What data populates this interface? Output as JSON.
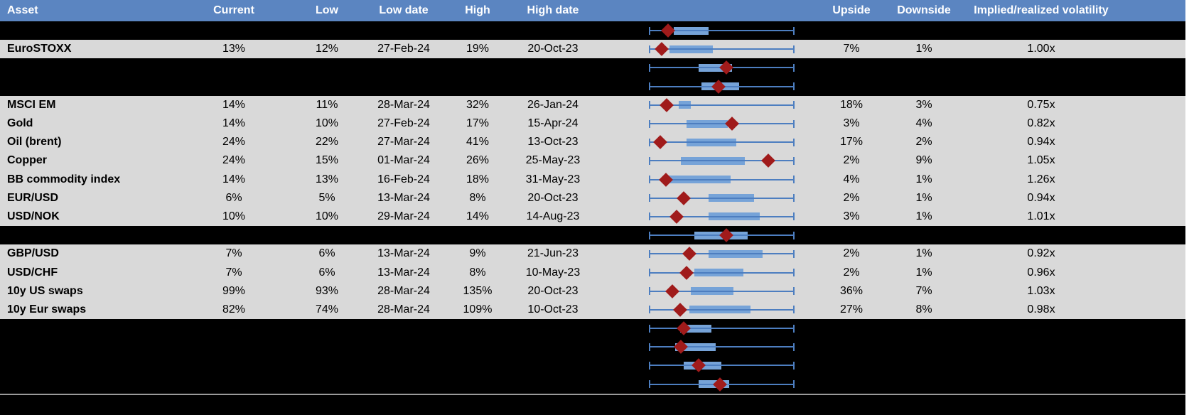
{
  "colors": {
    "header_bg": "#5B85C1",
    "row_bg": "#D9D9D9",
    "hidden_row_bg": "#000000",
    "box_fill": "#76A3D8",
    "whisker": "#4D7EC0",
    "diamond": "#A01B1B",
    "divider": "#9A9A9A"
  },
  "chart_data": {
    "type": "table",
    "note_box_geometry": "box and diamond values are normalized 0-1 positions of each row's range boxplot (whisker spans full low-high range)",
    "columns": {
      "asset": "Asset",
      "current": "Current",
      "low": "Low",
      "low_date": "Low date",
      "high": "High",
      "high_date": "High date",
      "range": "",
      "upside": "Upside",
      "downside": "Downside",
      "impl_vol": "Implied/realized volatility"
    },
    "rows": [
      {
        "hidden": true,
        "asset": "",
        "current": "",
        "low": "",
        "low_date": "",
        "high": "",
        "high_date": "",
        "upside": "",
        "downside": "",
        "impl_vol": "",
        "box": [
          0.17,
          0.41
        ],
        "diamond": 0.13
      },
      {
        "hidden": false,
        "asset": "EuroSTOXX",
        "current": "13%",
        "low": "12%",
        "low_date": "27-Feb-24",
        "high": "19%",
        "high_date": "20-Oct-23",
        "upside": "7%",
        "downside": "1%",
        "impl_vol": "1.00x",
        "box": [
          0.14,
          0.44
        ],
        "diamond": 0.09
      },
      {
        "hidden": true,
        "asset": "",
        "current": "",
        "low": "",
        "low_date": "",
        "high": "",
        "high_date": "",
        "upside": "",
        "downside": "",
        "impl_vol": "",
        "box": [
          0.34,
          0.57
        ],
        "diamond": 0.53
      },
      {
        "hidden": true,
        "asset": "",
        "current": "",
        "low": "",
        "low_date": "",
        "high": "",
        "high_date": "",
        "upside": "",
        "downside": "",
        "impl_vol": "",
        "box": [
          0.36,
          0.62
        ],
        "diamond": 0.48
      },
      {
        "hidden": false,
        "asset": "MSCI EM",
        "current": "14%",
        "low": "11%",
        "low_date": "28-Mar-24",
        "high": "32%",
        "high_date": "26-Jan-24",
        "upside": "18%",
        "downside": "3%",
        "impl_vol": "0.75x",
        "box": [
          0.205,
          0.29
        ],
        "diamond": 0.12
      },
      {
        "hidden": false,
        "asset": "Gold",
        "current": "14%",
        "low": "10%",
        "low_date": "27-Feb-24",
        "high": "17%",
        "high_date": "15-Apr-24",
        "upside": "3%",
        "downside": "4%",
        "impl_vol": "0.82x",
        "box": [
          0.26,
          0.54
        ],
        "diamond": 0.57
      },
      {
        "hidden": false,
        "asset": "Oil (brent)",
        "current": "24%",
        "low": "22%",
        "low_date": "27-Mar-24",
        "high": "41%",
        "high_date": "13-Oct-23",
        "upside": "17%",
        "downside": "2%",
        "impl_vol": "0.94x",
        "box": [
          0.26,
          0.6
        ],
        "diamond": 0.08
      },
      {
        "hidden": false,
        "asset": "Copper",
        "current": "24%",
        "low": "15%",
        "low_date": "01-Mar-24",
        "high": "26%",
        "high_date": "25-May-23",
        "upside": "2%",
        "downside": "9%",
        "impl_vol": "1.05x",
        "box": [
          0.22,
          0.66
        ],
        "diamond": 0.82
      },
      {
        "hidden": false,
        "asset": "BB commodity index",
        "current": "14%",
        "low": "13%",
        "low_date": "16-Feb-24",
        "high": "18%",
        "high_date": "31-May-23",
        "upside": "4%",
        "downside": "1%",
        "impl_vol": "1.26x",
        "box": [
          0.13,
          0.56
        ],
        "diamond": 0.117
      },
      {
        "hidden": false,
        "asset": "EUR/USD",
        "current": "6%",
        "low": "5%",
        "low_date": "13-Mar-24",
        "high": "8%",
        "high_date": "20-Oct-23",
        "upside": "2%",
        "downside": "1%",
        "impl_vol": "0.94x",
        "box": [
          0.41,
          0.72
        ],
        "diamond": 0.24
      },
      {
        "hidden": false,
        "asset": "USD/NOK",
        "current": "10%",
        "low": "10%",
        "low_date": "29-Mar-24",
        "high": "14%",
        "high_date": "14-Aug-23",
        "upside": "3%",
        "downside": "1%",
        "impl_vol": "1.01x",
        "box": [
          0.41,
          0.76
        ],
        "diamond": 0.19
      },
      {
        "hidden": true,
        "asset": "",
        "current": "",
        "low": "",
        "low_date": "",
        "high": "",
        "high_date": "",
        "upside": "",
        "downside": "",
        "impl_vol": "",
        "box": [
          0.31,
          0.68
        ],
        "diamond": 0.53
      },
      {
        "hidden": false,
        "asset": "GBP/USD",
        "current": "7%",
        "low": "6%",
        "low_date": "13-Mar-24",
        "high": "9%",
        "high_date": "21-Jun-23",
        "upside": "2%",
        "downside": "1%",
        "impl_vol": "0.92x",
        "box": [
          0.41,
          0.78
        ],
        "diamond": 0.28
      },
      {
        "hidden": false,
        "asset": "USD/CHF",
        "current": "7%",
        "low": "6%",
        "low_date": "13-Mar-24",
        "high": "8%",
        "high_date": "10-May-23",
        "upside": "2%",
        "downside": "1%",
        "impl_vol": "0.96x",
        "box": [
          0.31,
          0.65
        ],
        "diamond": 0.26
      },
      {
        "hidden": false,
        "asset": "10y US swaps",
        "current": "99%",
        "low": "93%",
        "low_date": "28-Mar-24",
        "high": "135%",
        "high_date": "20-Oct-23",
        "upside": "36%",
        "downside": "7%",
        "impl_vol": "1.03x",
        "box": [
          0.29,
          0.58
        ],
        "diamond": 0.16
      },
      {
        "hidden": false,
        "asset": "10y Eur swaps",
        "current": "82%",
        "low": "74%",
        "low_date": "28-Mar-24",
        "high": "109%",
        "high_date": "10-Oct-23",
        "upside": "27%",
        "downside": "8%",
        "impl_vol": "0.98x",
        "box": [
          0.28,
          0.7
        ],
        "diamond": 0.215
      },
      {
        "hidden": true,
        "asset": "",
        "current": "",
        "low": "",
        "low_date": "",
        "high": "",
        "high_date": "",
        "upside": "",
        "downside": "",
        "impl_vol": "",
        "box": [
          0.215,
          0.43
        ],
        "diamond": 0.24
      },
      {
        "hidden": true,
        "asset": "",
        "current": "",
        "low": "",
        "low_date": "",
        "high": "",
        "high_date": "",
        "upside": "",
        "downside": "",
        "impl_vol": "",
        "box": [
          0.18,
          0.46
        ],
        "diamond": 0.22
      },
      {
        "hidden": true,
        "asset": "",
        "current": "",
        "low": "",
        "low_date": "",
        "high": "",
        "high_date": "",
        "upside": "",
        "downside": "",
        "impl_vol": "",
        "box": [
          0.24,
          0.5
        ],
        "diamond": 0.34
      },
      {
        "hidden": true,
        "asset": "",
        "current": "",
        "low": "",
        "low_date": "",
        "high": "",
        "high_date": "",
        "upside": "",
        "downside": "",
        "impl_vol": "",
        "box": [
          0.34,
          0.55
        ],
        "diamond": 0.49
      }
    ]
  }
}
